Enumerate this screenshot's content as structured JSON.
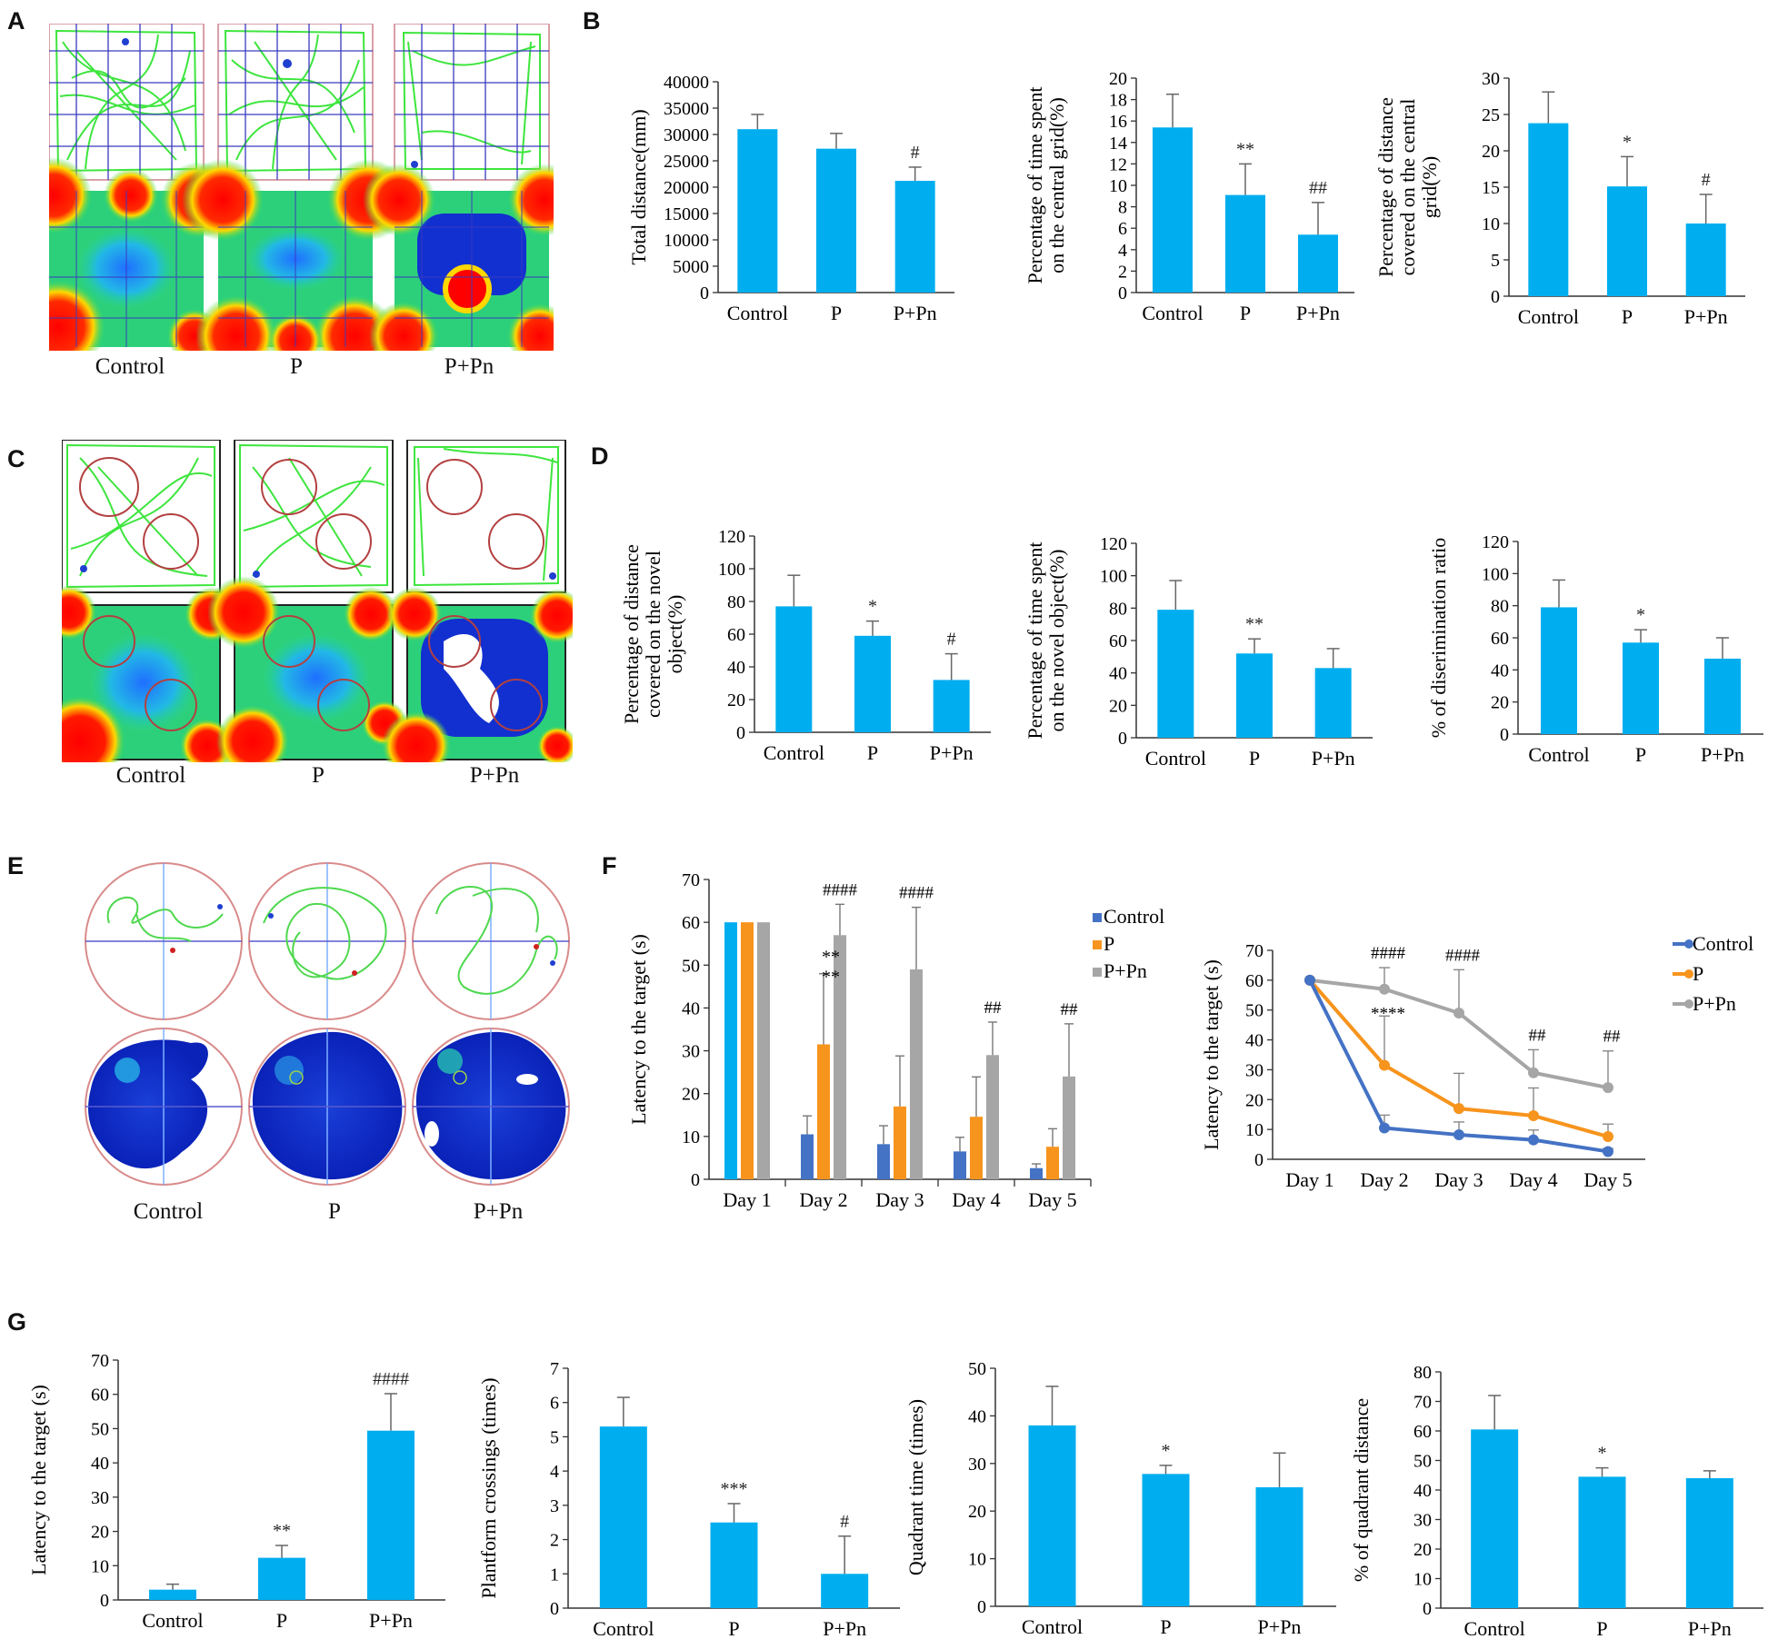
{
  "panels": {
    "A": "A",
    "B": "B",
    "C": "C",
    "D": "D",
    "E": "E",
    "F": "F",
    "G": "G"
  },
  "groups": [
    "Control",
    "P",
    "P+Pn"
  ],
  "colors": {
    "bar": "#00aeef",
    "control": "#4472c4",
    "p": "#f7941d",
    "ppn": "#a6a6a6",
    "track": "#39e639",
    "frame_a": "#d9a0a8",
    "frame_c": "#222222",
    "circle": "#b34040"
  },
  "chart_data": [
    {
      "id": "B1",
      "type": "bar",
      "categories": [
        "Control",
        "P",
        "P+Pn"
      ],
      "values": [
        31000,
        27300,
        21200
      ],
      "errors": [
        2800,
        2900,
        2600
      ],
      "annotations": [
        "",
        "",
        "#"
      ],
      "ylabel": "Total distance(mm)",
      "ylim": [
        0,
        40000
      ],
      "ticks": [
        0,
        5000,
        10000,
        15000,
        20000,
        25000,
        30000,
        35000,
        40000
      ]
    },
    {
      "id": "B2",
      "type": "bar",
      "categories": [
        "Control",
        "P",
        "P+Pn"
      ],
      "values": [
        15.4,
        9.1,
        5.4
      ],
      "errors": [
        3.1,
        2.9,
        3.0
      ],
      "annotations": [
        "",
        "**",
        "##"
      ],
      "ylabel_lines": [
        "Percentage of time spent",
        "on the central grid(%)"
      ],
      "ylim": [
        0,
        20
      ],
      "ticks": [
        0,
        2,
        4,
        6,
        8,
        10,
        12,
        14,
        16,
        18,
        20
      ]
    },
    {
      "id": "B3",
      "type": "bar",
      "categories": [
        "Control",
        "P",
        "P+Pn"
      ],
      "values": [
        23.8,
        15.1,
        10.0
      ],
      "errors": [
        4.3,
        4.1,
        4.0
      ],
      "annotations": [
        "",
        "*",
        "#"
      ],
      "ylabel_lines": [
        "Percentage of distance",
        "covered on the central",
        "grid(%)"
      ],
      "ylim": [
        0,
        30
      ],
      "ticks": [
        0,
        5,
        10,
        15,
        20,
        25,
        30
      ]
    },
    {
      "id": "D1",
      "type": "bar",
      "categories": [
        "Control",
        "P",
        "P+Pn"
      ],
      "values": [
        77,
        59,
        32
      ],
      "errors": [
        19,
        9,
        16
      ],
      "annotations": [
        "",
        "*",
        "#"
      ],
      "ylabel_lines": [
        "Percentage of distance",
        "covered on the novel",
        "object(%)"
      ],
      "ylim": [
        0,
        120
      ],
      "ticks": [
        0,
        20,
        40,
        60,
        80,
        100,
        120
      ]
    },
    {
      "id": "D2",
      "type": "bar",
      "categories": [
        "Control",
        "P",
        "P+Pn"
      ],
      "values": [
        79,
        52,
        43
      ],
      "errors": [
        18,
        9,
        12
      ],
      "annotations": [
        "",
        "**",
        ""
      ],
      "ylabel_lines": [
        "Percentage of time spent",
        "on the novel object(%)"
      ],
      "ylim": [
        0,
        120
      ],
      "ticks": [
        0,
        20,
        40,
        60,
        80,
        100,
        120
      ]
    },
    {
      "id": "D3",
      "type": "bar",
      "categories": [
        "Control",
        "P",
        "P+Pn"
      ],
      "values": [
        79,
        57,
        47
      ],
      "errors": [
        17,
        8,
        13
      ],
      "annotations": [
        "",
        "*",
        ""
      ],
      "ylabel": "% of diserimination ratio",
      "ylim": [
        0,
        120
      ],
      "ticks": [
        0,
        20,
        40,
        60,
        80,
        100,
        120
      ]
    },
    {
      "id": "F1",
      "type": "bar",
      "categories": [
        "Day 1",
        "Day 2",
        "Day 3",
        "Day 4",
        "Day 5"
      ],
      "series": [
        {
          "name": "Control",
          "values": [
            60,
            10.5,
            8.2,
            6.5,
            2.6
          ],
          "errors": [
            0,
            4.3,
            4.3,
            3.3,
            1.0
          ]
        },
        {
          "name": "P",
          "values": [
            60,
            31.5,
            17.0,
            14.6,
            7.6
          ],
          "errors": [
            0,
            16.5,
            11.8,
            9.3,
            4.2
          ]
        },
        {
          "name": "P+Pn",
          "values": [
            60,
            57,
            49,
            29,
            24
          ],
          "errors": [
            0,
            7.2,
            14.5,
            7.7,
            12.3
          ]
        }
      ],
      "annotations": [
        {
          "category": 1,
          "text": "####"
        },
        {
          "category": 2,
          "text": "####"
        },
        {
          "category": 3,
          "text": "##"
        },
        {
          "category": 4,
          "text": "##"
        }
      ],
      "stars": "**\n**",
      "ylabel": "Latency to the target (s)",
      "ylim": [
        0,
        70
      ],
      "ticks": [
        0,
        10,
        20,
        30,
        40,
        50,
        60,
        70
      ]
    },
    {
      "id": "F2",
      "type": "line",
      "categories": [
        "Day 1",
        "Day 2",
        "Day 3",
        "Day 4",
        "Day 5"
      ],
      "series": [
        {
          "name": "Control",
          "values": [
            60,
            10.5,
            8.2,
            6.5,
            2.6
          ],
          "errors": [
            0,
            4.3,
            4.3,
            3.3,
            1.0
          ]
        },
        {
          "name": "P",
          "values": [
            60,
            31.5,
            17.0,
            14.6,
            7.6
          ],
          "errors": [
            0,
            16.5,
            11.8,
            9.3,
            4.2
          ]
        },
        {
          "name": "P+Pn",
          "values": [
            60,
            57,
            49,
            29,
            24
          ],
          "errors": [
            0,
            7.2,
            14.5,
            7.7,
            12.3
          ]
        }
      ],
      "annotations": [
        "####",
        "####",
        "##",
        "##",
        "****"
      ],
      "ylabel": "Latency to the target (s)",
      "ylim": [
        0,
        70
      ],
      "ticks": [
        0,
        10,
        20,
        30,
        40,
        50,
        60,
        70
      ]
    },
    {
      "id": "G1",
      "type": "bar",
      "categories": [
        "Control",
        "P",
        "P+Pn"
      ],
      "values": [
        3.0,
        12.3,
        49.4
      ],
      "errors": [
        1.6,
        3.6,
        10.8
      ],
      "annotations": [
        "",
        "**",
        "####"
      ],
      "ylabel": "Latency to the target (s)",
      "ylim": [
        0,
        70
      ],
      "ticks": [
        0,
        10,
        20,
        30,
        40,
        50,
        60,
        70
      ]
    },
    {
      "id": "G2",
      "type": "bar",
      "categories": [
        "Control",
        "P",
        "P+Pn"
      ],
      "values": [
        5.3,
        2.5,
        1.0
      ],
      "errors": [
        0.85,
        0.55,
        1.1
      ],
      "annotations": [
        "",
        "***",
        "#"
      ],
      "ylabel": "Plantform crossings (times)",
      "ylim": [
        0,
        7
      ],
      "ticks": [
        0,
        1,
        2,
        3,
        4,
        5,
        6,
        7
      ]
    },
    {
      "id": "G3",
      "type": "bar",
      "categories": [
        "Control",
        "P",
        "P+Pn"
      ],
      "values": [
        38,
        27.8,
        25
      ],
      "errors": [
        8.2,
        1.8,
        7.2
      ],
      "annotations": [
        "",
        "*",
        ""
      ],
      "ylabel": "Quadrant time (times)",
      "ylim": [
        0,
        50
      ],
      "ticks": [
        0,
        10,
        20,
        30,
        40,
        50
      ]
    },
    {
      "id": "G4",
      "type": "bar",
      "categories": [
        "Control",
        "P",
        "P+Pn"
      ],
      "values": [
        60.5,
        44.5,
        44
      ],
      "errors": [
        11.5,
        3,
        2.5
      ],
      "annotations": [
        "",
        "*",
        ""
      ],
      "ylabel": "% of quadrant distance",
      "ylim": [
        0,
        80
      ],
      "ticks": [
        0,
        10,
        20,
        30,
        40,
        50,
        60,
        70,
        80
      ]
    }
  ]
}
